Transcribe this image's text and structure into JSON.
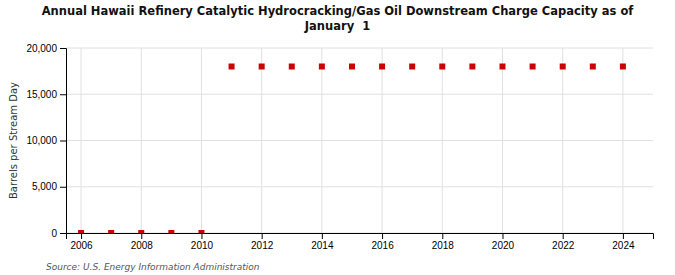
{
  "chart_data": {
    "type": "scatter",
    "title": "Annual Hawaii Refinery Catalytic Hydrocracking/Gas Oil Downstream Charge Capacity as of\nJanuary  1",
    "ylabel": "Barrels per Stream Day",
    "annotation": "Source: U.S. Energy Information Administration",
    "x": [
      2006,
      2007,
      2008,
      2009,
      2010,
      2011,
      2012,
      2013,
      2014,
      2015,
      2016,
      2017,
      2018,
      2019,
      2020,
      2021,
      2022,
      2023,
      2024
    ],
    "values": [
      0,
      0,
      0,
      0,
      0,
      18000,
      18000,
      18000,
      18000,
      18000,
      18000,
      18000,
      18000,
      18000,
      18000,
      18000,
      18000,
      18000,
      18000
    ],
    "color": "#cc0000",
    "marker": "square",
    "xlim": [
      2005.5,
      2025.0
    ],
    "xticks": [
      2006,
      2008,
      2010,
      2012,
      2014,
      2016,
      2018,
      2020,
      2022,
      2024
    ],
    "ylim": [
      0,
      20000
    ],
    "yticks": [
      0,
      {
        "value": 5000,
        "label": "5,000"
      },
      {
        "value": 10000,
        "label": "10,000"
      },
      {
        "value": 15000,
        "label": "15,000"
      },
      {
        "value": 20000,
        "label": "20,000"
      }
    ],
    "grid": true
  }
}
